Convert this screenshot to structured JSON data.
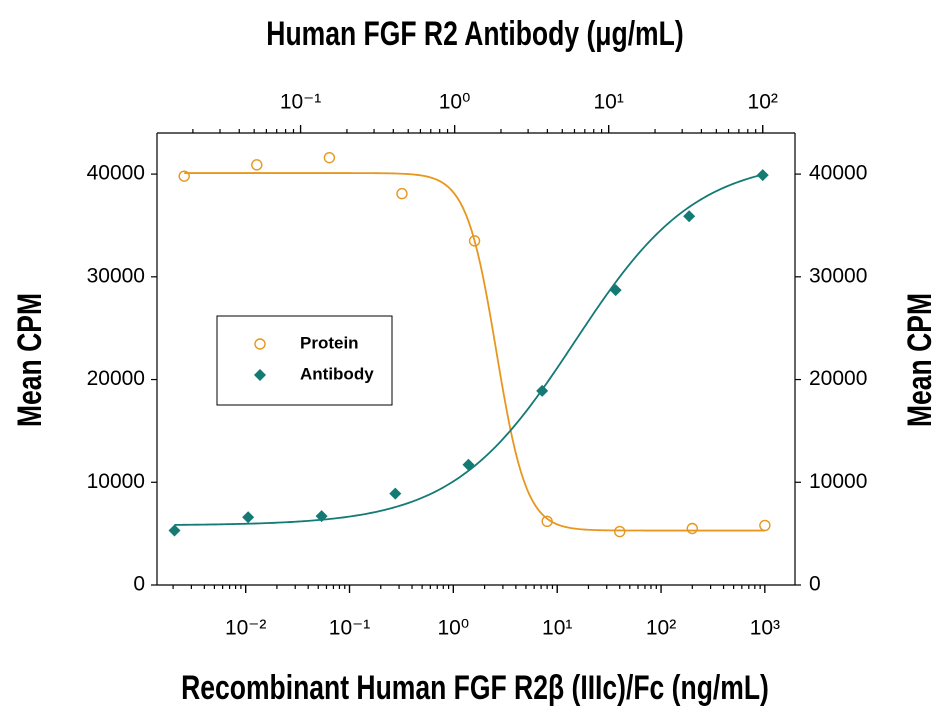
{
  "chart_data": {
    "type": "scatter",
    "title": "Human FGF R2  Antibody (μg/mL)",
    "xlabel": "Recombinant Human FGF R2β (IIIc)/Fc (ng/mL)",
    "ylabel": "Mean CPM",
    "y2label": "Mean CPM",
    "xscale": "log",
    "x2scale": "log",
    "xlim": [
      0.0014,
      1950
    ],
    "xticks": [
      {
        "value": 0.01,
        "label": "10⁻²"
      },
      {
        "value": 0.1,
        "label": "10⁻¹"
      },
      {
        "value": 1,
        "label": "10⁰"
      },
      {
        "value": 10,
        "label": "10¹"
      },
      {
        "value": 100,
        "label": "10²"
      },
      {
        "value": 1000,
        "label": "10³"
      }
    ],
    "x2lim": [
      0.0117,
      162
    ],
    "x2ticks": [
      {
        "value": 0.1,
        "label": "10⁻¹"
      },
      {
        "value": 1,
        "label": "10⁰"
      },
      {
        "value": 10,
        "label": "10¹"
      },
      {
        "value": 100,
        "label": "10²"
      }
    ],
    "ylim": [
      0,
      44000
    ],
    "yticks": [
      0,
      10000,
      20000,
      30000,
      40000
    ],
    "y2lim": [
      0,
      44000
    ],
    "y2ticks": [
      0,
      10000,
      20000,
      30000,
      40000
    ],
    "legend": "center-left",
    "series": [
      {
        "name": "Protein",
        "color": "#e8961e",
        "marker": "circle",
        "xaxis": "x",
        "x": [
          0.00256,
          0.0128,
          0.064,
          0.32,
          1.6,
          8,
          40,
          200,
          1000
        ],
        "values": [
          39800,
          40900,
          41600,
          38100,
          33500,
          6200,
          5200,
          5500,
          5800
        ],
        "fit": {
          "bottom": 5300,
          "top": 40100,
          "ec50": 2.6,
          "hill": 3
        }
      },
      {
        "name": "Antibody",
        "color": "#137a74",
        "marker": "diamond",
        "xaxis": "x2",
        "x": [
          0.0152,
          0.0457,
          0.137,
          0.412,
          1.23,
          3.7,
          11.1,
          33.3,
          100
        ],
        "values": [
          5300,
          6600,
          6700,
          8900,
          11700,
          18900,
          28700,
          35900,
          39900
        ],
        "fit": {
          "bottom": 5800,
          "top": 41500,
          "ec50": 6,
          "hill": -1.1
        }
      }
    ]
  }
}
